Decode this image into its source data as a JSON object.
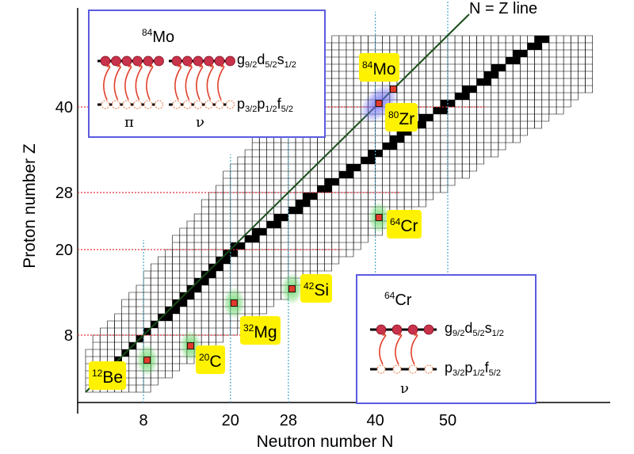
{
  "axes": {
    "x_title": "Neutron number N",
    "y_title": "Proton number Z",
    "x_ticks": [
      "8",
      "20",
      "28",
      "40",
      "50"
    ],
    "y_ticks": [
      "8",
      "20",
      "28",
      "40"
    ],
    "nz_line_label": "N = Z line"
  },
  "magic_x": [
    8,
    20,
    28,
    40,
    50
  ],
  "magic_y": [
    8,
    20,
    28,
    40
  ],
  "nuclei": [
    {
      "sup": "84",
      "sym": "Mo",
      "n": 42,
      "z": 42
    },
    {
      "sup": "80",
      "sym": "Zr",
      "n": 40,
      "z": 40
    },
    {
      "sup": "64",
      "sym": "Cr",
      "n": 40,
      "z": 24
    },
    {
      "sup": "42",
      "sym": "Si",
      "n": 28,
      "z": 14
    },
    {
      "sup": "32",
      "sym": "Mg",
      "n": 20,
      "z": 12
    },
    {
      "sup": "20",
      "sym": "C",
      "n": 14,
      "z": 6
    },
    {
      "sup": "12",
      "sym": "Be",
      "n": 8,
      "z": 4
    }
  ],
  "inset_mo": {
    "title_sup": "84",
    "title_sym": "Mo",
    "upper": {
      "g": "g",
      "g_sub": "9/2",
      "d": "d",
      "d_sub": "5/2",
      "s": "s",
      "s_sub": "1/2"
    },
    "lower": {
      "p1": "p",
      "p1_sub": "3/2",
      "p2": "p",
      "p2_sub": "1/2",
      "f": "f",
      "f_sub": "5/2"
    },
    "pi": "π",
    "nu": "ν"
  },
  "inset_cr": {
    "title_sup": "64",
    "title_sym": "Cr",
    "upper": {
      "g": "g",
      "g_sub": "9/2",
      "d": "d",
      "d_sub": "5/2",
      "s": "s",
      "s_sub": "1/2"
    },
    "lower": {
      "p1": "p",
      "p1_sub": "3/2",
      "p2": "p",
      "p2_sub": "1/2",
      "f": "f",
      "f_sub": "5/2"
    },
    "nu": "ν"
  },
  "colors": {
    "grid": "#000000",
    "magic_line": "#e0303a",
    "magic_vline": "#4aa6c8",
    "nz_line": "#1a4d1a",
    "label_bg": "#fff200",
    "marker": "#e23b2a",
    "glow_green": "#5fd35f",
    "glow_blue": "#6b6bf0",
    "inset_border": "#5c5ce0",
    "particle": "#c8324a"
  }
}
